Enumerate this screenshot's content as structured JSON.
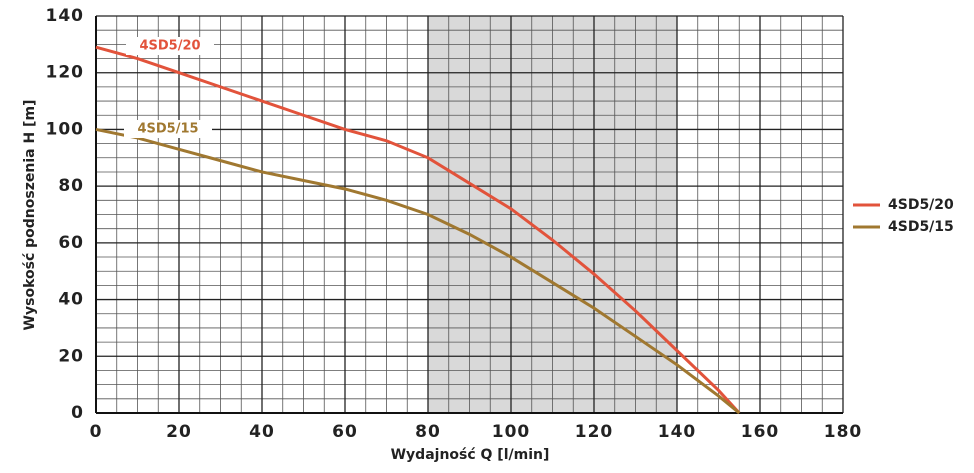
{
  "chart_data": {
    "type": "line",
    "x_label": "Wydajność Q [l/min]",
    "y_label": "Wysokość podnoszenia H [m]",
    "x": [
      0,
      10,
      20,
      30,
      40,
      50,
      60,
      70,
      80,
      90,
      100,
      110,
      120,
      130,
      140,
      150,
      155
    ],
    "series": [
      {
        "name": "4SD5/20",
        "color": "#e2533b",
        "values": [
          129,
          125,
          120,
          115,
          110,
          105,
          100,
          96,
          90,
          81,
          72,
          61,
          49,
          36,
          22,
          8,
          0
        ]
      },
      {
        "name": "4SD5/15",
        "color": "#a07830",
        "values": [
          100,
          97,
          93,
          89,
          85,
          82,
          79,
          75,
          70,
          63,
          55,
          46,
          37,
          27,
          17,
          6,
          0
        ]
      }
    ],
    "highlight_x": [
      80,
      140
    ],
    "xlim": [
      0,
      180
    ],
    "xticks": [
      0,
      20,
      40,
      60,
      80,
      100,
      120,
      140,
      160,
      180
    ],
    "ylim": [
      0,
      140
    ],
    "yticks": [
      0,
      20,
      40,
      60,
      80,
      100,
      120,
      140
    ],
    "grid": true,
    "legend": "right"
  }
}
